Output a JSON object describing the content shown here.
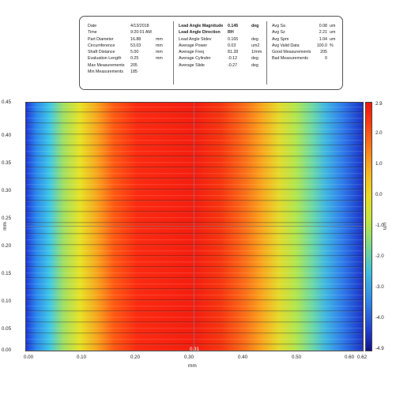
{
  "info_panel": {
    "left": [
      {
        "label": "Date",
        "value": "4/13/2018",
        "unit": ""
      },
      {
        "label": "Time",
        "value": "9:20:01 AM",
        "unit": ""
      },
      {
        "label": "Part Diameter",
        "value": "16.88",
        "unit": "mm"
      },
      {
        "label": "Circumference",
        "value": "53.03",
        "unit": "mm"
      },
      {
        "label": "Shaft Distance",
        "value": "5.00",
        "unit": "mm"
      },
      {
        "label": "Evaluation Length",
        "value": "0.25",
        "unit": "mm"
      },
      {
        "label": "Max Measurements",
        "value": "205",
        "unit": ""
      },
      {
        "label": "Min Measurements",
        "value": "185",
        "unit": ""
      }
    ],
    "middle": [
      {
        "label": "Lead Angle Magnitude",
        "value": "0.145",
        "unit": "deg",
        "bold": true
      },
      {
        "label": "Lead Angle Direction",
        "value": "RH",
        "unit": "",
        "bold": true
      },
      {
        "label": "Lead Angle Stdev",
        "value": "0.165",
        "unit": "deg"
      },
      {
        "label": "Average Power",
        "value": "0.03",
        "unit": "um2"
      },
      {
        "label": "Average Freq",
        "value": "81.28",
        "unit": "1/mm"
      },
      {
        "label": "Average Cylinder",
        "value": "-0.12",
        "unit": "deg"
      },
      {
        "label": "Average Slide",
        "value": "-0.27",
        "unit": "deg"
      }
    ],
    "right": [
      {
        "label": "Avg Sa",
        "value": "0.08",
        "unit": "um"
      },
      {
        "label": "Avg Sz",
        "value": "2.21",
        "unit": "um"
      },
      {
        "label": "Avg Spm",
        "value": "1.04",
        "unit": "um"
      },
      {
        "label": "Avg Valid Data",
        "value": "100.0",
        "unit": "%"
      },
      {
        "label": "Good Measurements",
        "value": "205",
        "unit": ""
      },
      {
        "label": "Bad Measurements",
        "value": "0",
        "unit": ""
      }
    ]
  },
  "plot": {
    "x_axis_label": "mm",
    "y_axis_label": "mm",
    "x_ticks": [
      "0.00",
      "0.10",
      "0.20",
      "0.30",
      "0.40",
      "0.50",
      "0.60"
    ],
    "x_end_label": "0.62",
    "y_ticks": [
      "0.45",
      "0.40",
      "0.35",
      "0.30",
      "0.25",
      "0.20",
      "0.15",
      "0.10",
      "0.05",
      "0.00"
    ],
    "crosshair_x": "0.31",
    "crosshair_y": "0.23"
  },
  "colorbar": {
    "unit": "um",
    "ticks": [
      "2.9",
      "2.0",
      "1.0",
      "0.0",
      "-1.0",
      "-2.0",
      "-3.0",
      "-4.0",
      "-4.9"
    ]
  }
}
